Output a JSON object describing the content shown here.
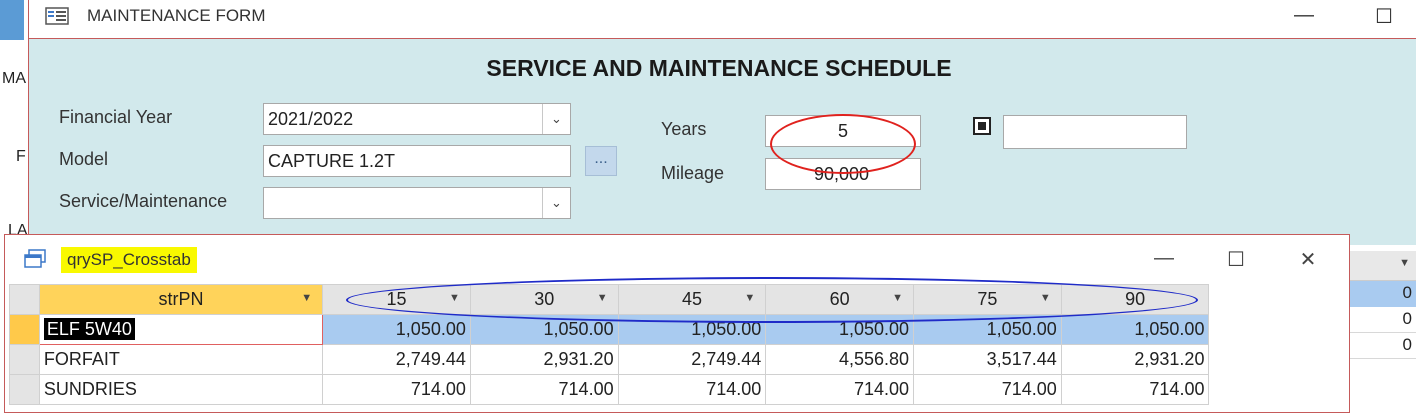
{
  "background_app": {
    "letters": [
      "MA",
      "F",
      "LA"
    ]
  },
  "form_window": {
    "title": "MAINTENANCE FORM",
    "minimize_glyph": "—",
    "maximize_glyph": "☐",
    "heading": "SERVICE AND MAINTENANCE SCHEDULE",
    "financial_year": {
      "label": "Financial Year",
      "value": "2021/2022"
    },
    "model": {
      "label": "Model",
      "value": "CAPTURE 1.2T",
      "button_label": "..."
    },
    "service_maintenance": {
      "label": "Service/Maintenance",
      "value": ""
    },
    "years": {
      "label": "Years",
      "value": "5"
    },
    "mileage": {
      "label": "Mileage",
      "value": "90,000"
    },
    "checkbox_checked": true,
    "extra_field_value": ""
  },
  "crosstab_window": {
    "title": "qrySP_Crosstab",
    "minimize_glyph": "—",
    "maximize_glyph": "☐",
    "close_glyph": "✕",
    "columns": [
      "strPN",
      "15",
      "30",
      "45",
      "60",
      "75",
      "90"
    ],
    "rows": [
      {
        "name": "ELF 5W40",
        "values": [
          "1,050.00",
          "1,050.00",
          "1,050.00",
          "1,050.00",
          "1,050.00",
          "1,050.00"
        ]
      },
      {
        "name": "FORFAIT",
        "values": [
          "2,749.44",
          "2,931.20",
          "2,749.44",
          "4,556.80",
          "3,517.44",
          "2,931.20"
        ]
      },
      {
        "name": "SUNDRIES",
        "values": [
          "714.00",
          "714.00",
          "714.00",
          "714.00",
          "714.00",
          "714.00"
        ]
      }
    ]
  },
  "background_grid": {
    "values": [
      "0",
      "0",
      "0"
    ]
  },
  "colors": {
    "form_background": "#d2e9ec",
    "selected_row": "#a9cbf0",
    "title_highlight": "#f9f900",
    "annotation_red": "#e0221e",
    "annotation_blue": "#1f2bc8"
  }
}
